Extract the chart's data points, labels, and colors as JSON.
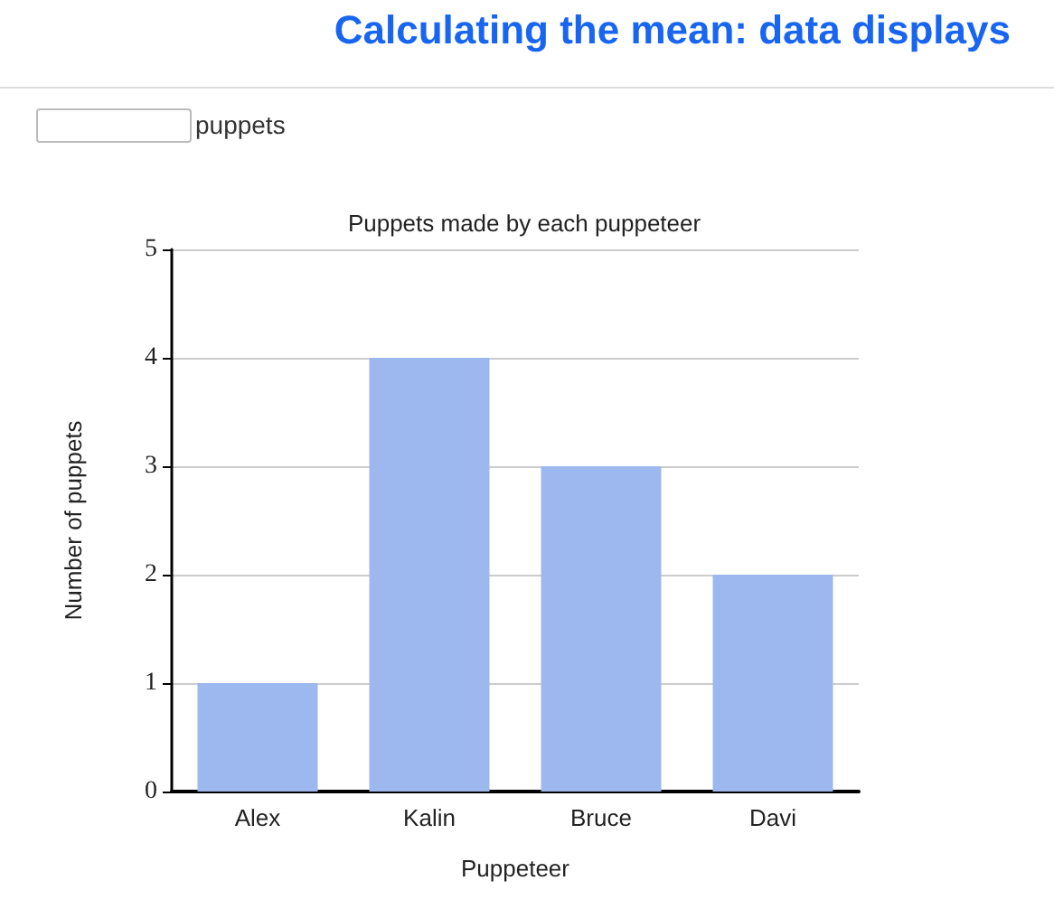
{
  "chart_data": {
    "type": "bar",
    "title": "Puppets made by each puppeteer",
    "xlabel": "Puppeteer",
    "ylabel": "Number of puppets",
    "categories": [
      "Alex",
      "Kalin",
      "Bruce",
      "Davi"
    ],
    "values": [
      1,
      4,
      3,
      2
    ],
    "color": "#9db8ee",
    "ylim": [
      0,
      5
    ],
    "yticks": [
      0,
      1,
      2,
      3,
      4,
      5
    ],
    "grid": "y",
    "annotations": [
      "Calculating the mean: data displays",
      "puppets"
    ]
  }
}
